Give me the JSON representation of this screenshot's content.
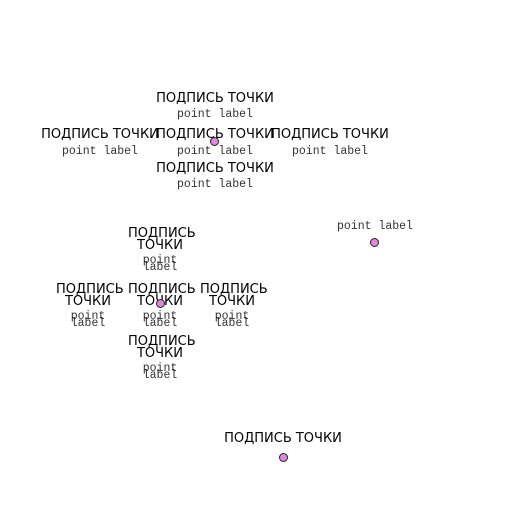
{
  "point_color": "#dd88dd",
  "labels": {
    "ru": "ПОДПИСЬ ТОЧКИ",
    "en": "point label"
  },
  "points": [
    {
      "id": "p-top-center"
    },
    {
      "id": "p-right"
    },
    {
      "id": "p-mid-left"
    },
    {
      "id": "p-bottom"
    }
  ]
}
